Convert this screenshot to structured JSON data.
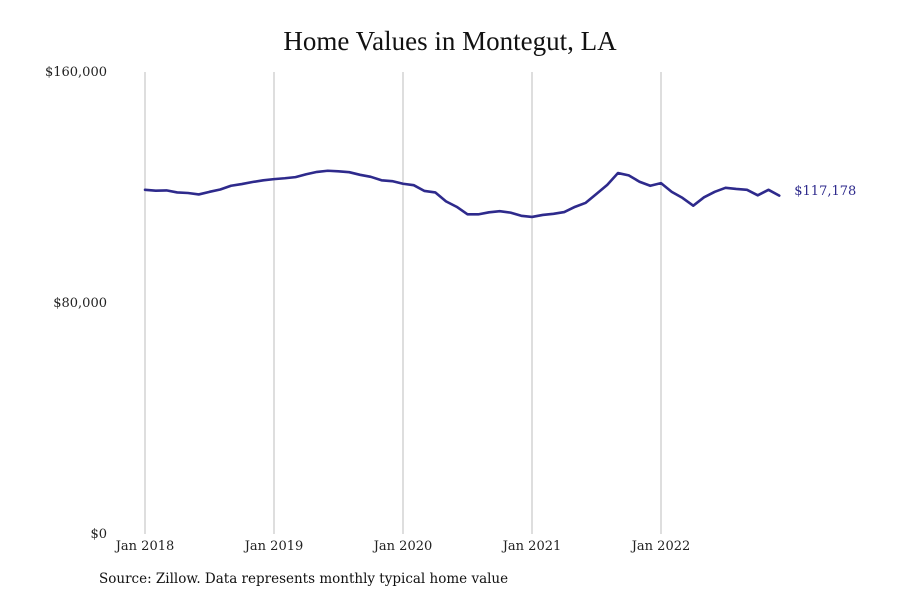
{
  "chart_data": {
    "type": "line",
    "title": "Home Values in Montegut, LA",
    "source": "Source: Zillow. Data represents monthly typical home value",
    "y_ticks": [
      {
        "value": 0,
        "label": "$0"
      },
      {
        "value": 80000,
        "label": "$80,000"
      },
      {
        "value": 160000,
        "label": "$160,000"
      }
    ],
    "ylim": [
      0,
      160000
    ],
    "x_ticks": [
      {
        "value": "2018-01",
        "label": "Jan 2018"
      },
      {
        "value": "2019-01",
        "label": "Jan 2019"
      },
      {
        "value": "2020-01",
        "label": "Jan 2020"
      },
      {
        "value": "2021-01",
        "label": "Jan 2021"
      },
      {
        "value": "2022-01",
        "label": "Jan 2022"
      }
    ],
    "grid": {
      "vertical": true,
      "horizontal": false
    },
    "series": [
      {
        "color": "#2e2a8c",
        "end_label": "$117,178",
        "x": [
          "2018-01",
          "2018-02",
          "2018-03",
          "2018-04",
          "2018-05",
          "2018-06",
          "2018-07",
          "2018-08",
          "2018-09",
          "2018-10",
          "2018-11",
          "2018-12",
          "2019-01",
          "2019-02",
          "2019-03",
          "2019-04",
          "2019-05",
          "2019-06",
          "2019-07",
          "2019-08",
          "2019-09",
          "2019-10",
          "2019-11",
          "2019-12",
          "2020-01",
          "2020-02",
          "2020-03",
          "2020-04",
          "2020-05",
          "2020-06",
          "2020-07",
          "2020-08",
          "2020-09",
          "2020-10",
          "2020-11",
          "2020-12",
          "2021-01",
          "2021-02",
          "2021-03",
          "2021-04",
          "2021-05",
          "2021-06",
          "2021-07",
          "2021-08",
          "2021-09",
          "2021-10",
          "2021-11",
          "2021-12",
          "2022-01",
          "2022-02",
          "2022-03",
          "2022-04",
          "2022-05",
          "2022-06",
          "2022-07",
          "2022-08",
          "2022-09",
          "2022-10",
          "2022-11",
          "2022-12"
        ],
        "values": [
          119200,
          118900,
          119000,
          118300,
          118100,
          117600,
          118500,
          119300,
          120600,
          121200,
          121900,
          122500,
          122900,
          123200,
          123600,
          124600,
          125400,
          125800,
          125600,
          125300,
          124400,
          123700,
          122500,
          122200,
          121300,
          120800,
          118800,
          118300,
          115200,
          113300,
          110700,
          110700,
          111400,
          111800,
          111300,
          110200,
          109800,
          110500,
          110900,
          111500,
          113300,
          114700,
          117800,
          120900,
          125000,
          124200,
          122000,
          120600,
          121500,
          118500,
          116400,
          113700,
          116600,
          118500,
          119900,
          119500,
          119200,
          117300,
          119200,
          117178
        ]
      }
    ]
  }
}
